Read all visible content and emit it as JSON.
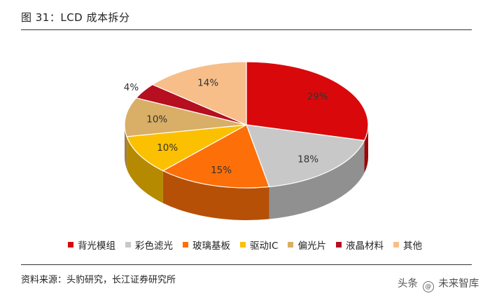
{
  "header": {
    "title": "图 31：LCD 成本拆分"
  },
  "footer": {
    "source": "资料来源：头豹研究，长江证券研究所",
    "watermark_prefix": "头条",
    "watermark_name": "未来智库"
  },
  "chart_data": {
    "type": "pie",
    "title": "",
    "legend_position": "bottom",
    "slices": [
      {
        "label": "背光模组",
        "value": 29,
        "display": "29%",
        "color": "#d9090b"
      },
      {
        "label": "彩色滤光",
        "value": 18,
        "display": "18%",
        "color": "#c8c8c8"
      },
      {
        "label": "玻璃基板",
        "value": 15,
        "display": "15%",
        "color": "#fd6f08"
      },
      {
        "label": "驱动IC",
        "value": 10,
        "display": "10%",
        "color": "#fbc000"
      },
      {
        "label": "偏光片",
        "value": 10,
        "display": "10%",
        "color": "#d9ae66"
      },
      {
        "label": "液晶材料",
        "value": 4,
        "display": "4%",
        "color": "#b50f20"
      },
      {
        "label": "其他",
        "value": 14,
        "display": "14%",
        "color": "#f7be8a"
      }
    ]
  }
}
